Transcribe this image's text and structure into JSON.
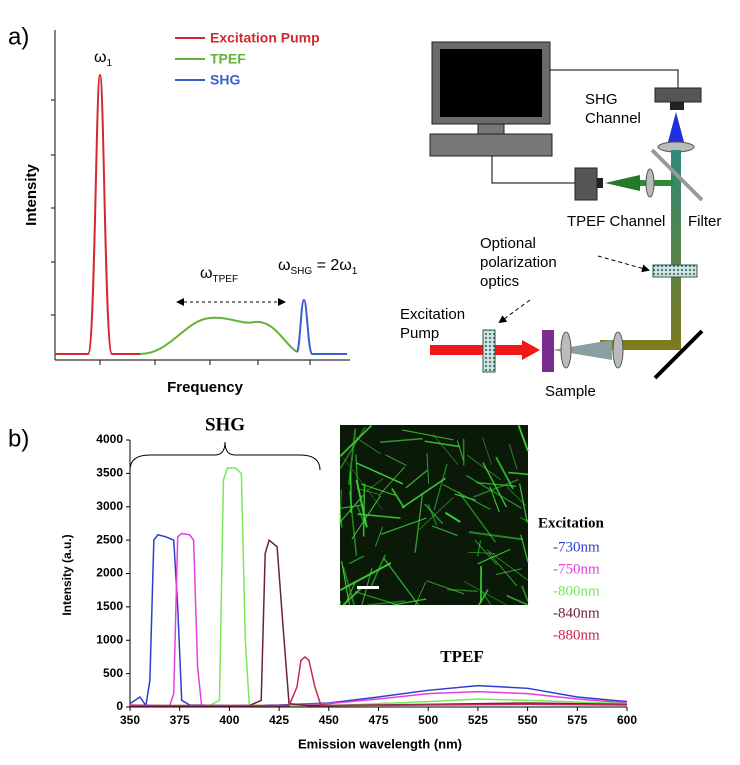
{
  "panel_a": {
    "label": "a)",
    "legend": [
      "Excitation Pump",
      "TPEF",
      "SHG"
    ],
    "omega1": {
      "base": "ω",
      "sub": "1"
    },
    "omega_tpef": {
      "base": "ω",
      "sub": "TPEF"
    },
    "omega_shg": {
      "base": "ω",
      "sub": "SHG",
      "eq": " = 2ω",
      "eq_sub": "1"
    },
    "y_label": "Intensity",
    "x_label": "Frequency",
    "diagram": {
      "shg_channel": [
        "SHG",
        "Channel"
      ],
      "tpef_channel": "TPEF Channel",
      "filter": "Filter",
      "polarization": [
        "Optional",
        "polarization",
        "optics"
      ],
      "pump": [
        "Excitation",
        "Pump"
      ],
      "sample": "Sample"
    }
  },
  "chart_data": {
    "type": "line",
    "label": "b)",
    "annotation_shg": "SHG",
    "annotation_tpef": "TPEF",
    "legend_title": "Excitation",
    "xlabel": "Emission wavelength (nm)",
    "ylabel": "Intensity (a.u.)",
    "xlim": [
      350,
      600
    ],
    "ylim": [
      0,
      4000
    ],
    "xticks": [
      350,
      375,
      400,
      425,
      450,
      475,
      500,
      525,
      550,
      575,
      600
    ],
    "yticks": [
      0,
      500,
      1000,
      1500,
      2000,
      2500,
      3000,
      3500,
      4000
    ],
    "series": [
      {
        "name": "-730nm",
        "color": "#2b3fcc",
        "x": [
          350,
          355,
          358,
          360,
          362,
          364,
          368,
          372,
          374,
          376,
          380,
          400,
          425,
          450,
          475,
          500,
          525,
          550,
          575,
          600
        ],
        "values": [
          50,
          150,
          20,
          400,
          2500,
          2580,
          2550,
          2500,
          1500,
          100,
          30,
          20,
          30,
          60,
          150,
          250,
          320,
          280,
          150,
          80
        ]
      },
      {
        "name": "-750nm",
        "color": "#e33fe0",
        "x": [
          350,
          370,
          372,
          374,
          376,
          380,
          382,
          384,
          386,
          390,
          425,
          450,
          475,
          500,
          525,
          550,
          575,
          600
        ],
        "values": [
          30,
          20,
          200,
          2550,
          2600,
          2580,
          2500,
          600,
          30,
          20,
          20,
          50,
          120,
          200,
          230,
          200,
          120,
          60
        ]
      },
      {
        "name": "-800nm",
        "color": "#7be85a",
        "x": [
          350,
          390,
          395,
          397,
          399,
          403,
          406,
          408,
          410,
          420,
          450,
          500,
          525,
          550,
          600
        ],
        "values": [
          20,
          20,
          100,
          3400,
          3580,
          3580,
          3500,
          1000,
          30,
          20,
          20,
          80,
          120,
          100,
          50
        ]
      },
      {
        "name": "-840nm",
        "color": "#6e2233",
        "x": [
          350,
          410,
          416,
          418,
          420,
          424,
          427,
          430,
          440,
          500,
          550,
          600
        ],
        "values": [
          20,
          20,
          100,
          2300,
          2500,
          2400,
          1200,
          50,
          20,
          40,
          60,
          40
        ]
      },
      {
        "name": "-880nm",
        "color": "#c7284f",
        "x": [
          350,
          430,
          434,
          436,
          438,
          440,
          443,
          446,
          450,
          500,
          550,
          600
        ],
        "values": [
          20,
          20,
          300,
          700,
          750,
          700,
          300,
          30,
          20,
          30,
          40,
          30
        ]
      }
    ]
  }
}
